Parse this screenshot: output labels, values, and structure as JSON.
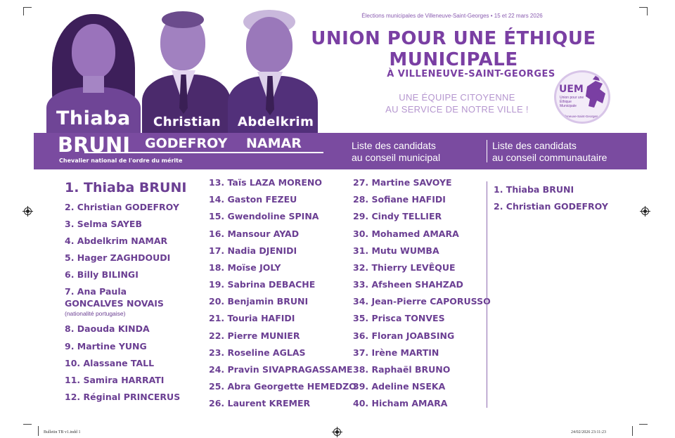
{
  "ballot_info": "Élections municipales de Villeneuve-Saint-Georges • 15 et 22 mars 2026",
  "title": {
    "line1": "UNION POUR UNE ÉTHIQUE",
    "line2": "MUNICIPALE",
    "city": "À VILLENEUVE-SAINT-GEORGES"
  },
  "tagline": {
    "line1": "UNE ÉQUIPE CITOYENNE",
    "line2": "AU SERVICE DE NOTRE VILLE !"
  },
  "logo": {
    "acronym": "UEM",
    "sub": "Union pour une Éthique Municipale",
    "city": "Villeneuve-Saint-Georges"
  },
  "leaders": [
    {
      "first": "Thiaba",
      "last": "BRUNI"
    },
    {
      "first": "Christian",
      "last": "GODEFROY"
    },
    {
      "first": "Abdelkrim",
      "last": "NAMAR"
    }
  ],
  "distinction": "Chevalier national de l'ordre du mérite",
  "band": {
    "municipal_line1": "Liste des candidats",
    "municipal_line2": "au conseil municipal",
    "community_line1": "Liste des candidats",
    "community_line2": "au conseil communautaire"
  },
  "municipal_candidates": {
    "col1": [
      "1. Thiaba BRUNI",
      "2. Christian GODEFROY",
      "3. Selma SAYEB",
      "4. Abdelkrim NAMAR",
      "5. Hager ZAGHDOUDI",
      "6. Billy BILINGI",
      "7. Ana Paula",
      "GONCALVES NOVAIS",
      "8. Daouda KINDA",
      "9. Martine YUNG",
      "10. Alassane TALL",
      "11. Samira HARRATI",
      "12. Réginal PRINCERUS"
    ],
    "note_7": "(nationalité portugaise)",
    "col2": [
      "13. Taïs LAZA MORENO",
      "14. Gaston FEZEU",
      "15. Gwendoline SPINA",
      "16. Mansour AYAD",
      "17. Nadia DJENIDI",
      "18. Moïse JOLY",
      "19. Sabrina DEBACHE",
      "20. Benjamin BRUNI",
      "21. Touria HAFIDI",
      "22. Pierre MUNIER",
      "23. Roseline AGLAS",
      "24. Pravin SIVAPRAGASSAME",
      "25. Abra Georgette HEMEDZO",
      "26. Laurent KREMER"
    ],
    "col3": [
      "27. Martine SAVOYE",
      "28. Sofiane HAFIDI",
      "29. Cindy TELLIER",
      "30. Mohamed AMARA",
      "31. Mutu WUMBA",
      "32. Thierry LEVÊQUE",
      "33. Afsheen SHAHZAD",
      "34. Jean-Pierre CAPORUSSO",
      "35. Prisca TONVES",
      "36. Floran JOABSING",
      "37. Irène MARTIN",
      "38. Raphaël BRUNO",
      "39. Adeline NSEKA",
      "40. Hicham AMARA"
    ]
  },
  "community_candidates": [
    "1. Thiaba BRUNI",
    "2. Christian GODEFROY"
  ],
  "footer": {
    "left": "Bulletin TB v1.indd 1",
    "right": "24/02/2026 23:11:23"
  },
  "colors": {
    "brand_purple": "#7a4ba0",
    "text_purple": "#6b3f93",
    "photo_purple": "#8a60ad"
  }
}
